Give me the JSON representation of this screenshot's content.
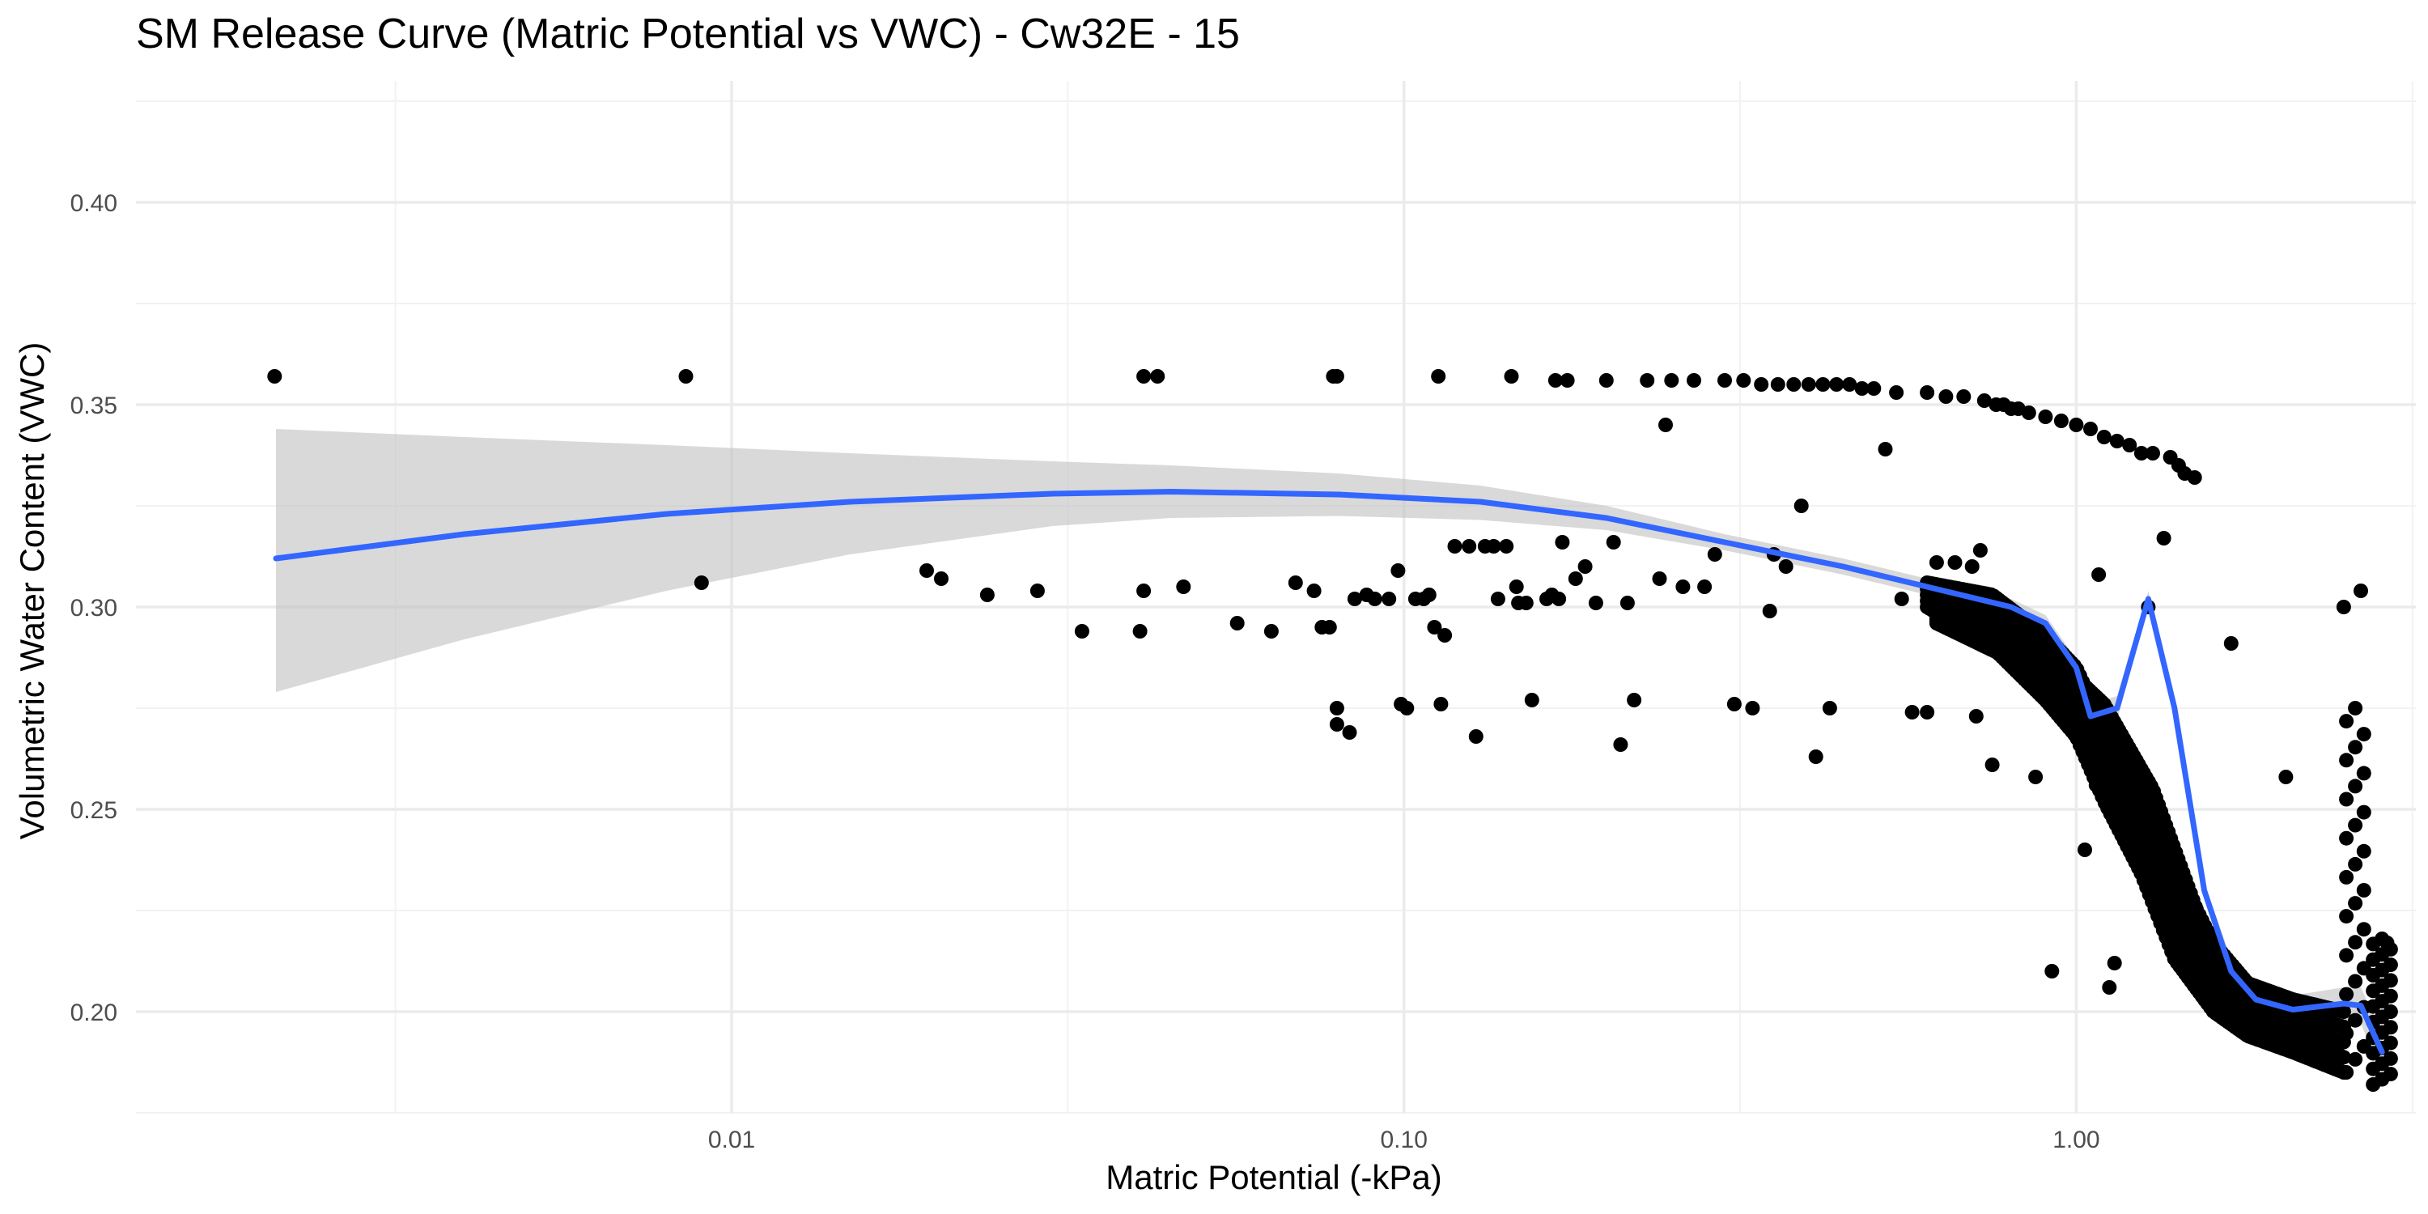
{
  "chart_data": {
    "type": "scatter",
    "title": "SM Release Curve (Matric Potential vs VWC) - Cw32E - 15",
    "xlabel": "Matric Potential (-kPa)",
    "ylabel": "Volumetric Water Content (VWC)",
    "x_scale": "log10",
    "xlim": [
      0.0013,
      3.2
    ],
    "ylim": [
      0.175,
      0.43
    ],
    "x_ticks": [
      0.01,
      0.1,
      1.0
    ],
    "x_tick_labels": [
      "0.01",
      "0.10",
      "1.00"
    ],
    "y_ticks": [
      0.2,
      0.25,
      0.3,
      0.35,
      0.4
    ],
    "y_tick_labels": [
      "0.20",
      "0.25",
      "0.30",
      "0.35",
      "0.40"
    ],
    "grid": true,
    "colors": {
      "points": "#000000",
      "fit_line": "#3366ff",
      "ribbon": "#bfbfbf",
      "grid_major": "#ebebeb",
      "grid_minor": "#f2f2f2"
    },
    "series": [
      {
        "kind": "points",
        "points": [
          [
            0.00209,
            0.357
          ],
          [
            0.00855,
            0.357
          ],
          [
            0.00902,
            0.306
          ],
          [
            0.0195,
            0.309
          ],
          [
            0.0205,
            0.307
          ],
          [
            0.024,
            0.303
          ],
          [
            0.0285,
            0.304
          ],
          [
            0.0332,
            0.294
          ],
          [
            0.0405,
            0.294
          ],
          [
            0.041,
            0.304
          ],
          [
            0.041,
            0.357
          ],
          [
            0.043,
            0.357
          ],
          [
            0.047,
            0.305
          ],
          [
            0.0565,
            0.296
          ],
          [
            0.0635,
            0.294
          ],
          [
            0.069,
            0.306
          ],
          [
            0.0735,
            0.304
          ],
          [
            0.0755,
            0.295
          ],
          [
            0.0775,
            0.295
          ],
          [
            0.0785,
            0.357
          ],
          [
            0.0795,
            0.357
          ],
          [
            0.0795,
            0.275
          ],
          [
            0.0795,
            0.271
          ],
          [
            0.083,
            0.269
          ],
          [
            0.0845,
            0.302
          ],
          [
            0.088,
            0.303
          ],
          [
            0.0905,
            0.302
          ],
          [
            0.095,
            0.302
          ],
          [
            0.098,
            0.309
          ],
          [
            0.099,
            0.276
          ],
          [
            0.101,
            0.275
          ],
          [
            0.104,
            0.302
          ],
          [
            0.107,
            0.302
          ],
          [
            0.109,
            0.303
          ],
          [
            0.111,
            0.295
          ],
          [
            0.1125,
            0.357
          ],
          [
            0.1135,
            0.276
          ],
          [
            0.115,
            0.293
          ],
          [
            0.119,
            0.315
          ],
          [
            0.125,
            0.315
          ],
          [
            0.128,
            0.268
          ],
          [
            0.132,
            0.315
          ],
          [
            0.136,
            0.315
          ],
          [
            0.138,
            0.302
          ],
          [
            0.142,
            0.315
          ],
          [
            0.1445,
            0.357
          ],
          [
            0.147,
            0.305
          ],
          [
            0.148,
            0.301
          ],
          [
            0.152,
            0.301
          ],
          [
            0.155,
            0.277
          ],
          [
            0.163,
            0.302
          ],
          [
            0.166,
            0.303
          ],
          [
            0.168,
            0.356
          ],
          [
            0.17,
            0.302
          ],
          [
            0.172,
            0.316
          ],
          [
            0.175,
            0.356
          ],
          [
            0.18,
            0.307
          ],
          [
            0.186,
            0.31
          ],
          [
            0.193,
            0.301
          ],
          [
            0.2,
            0.356
          ],
          [
            0.205,
            0.316
          ],
          [
            0.21,
            0.266
          ],
          [
            0.215,
            0.301
          ],
          [
            0.22,
            0.277
          ],
          [
            0.23,
            0.356
          ],
          [
            0.24,
            0.307
          ],
          [
            0.245,
            0.345
          ],
          [
            0.25,
            0.356
          ],
          [
            0.26,
            0.305
          ],
          [
            0.27,
            0.356
          ],
          [
            0.28,
            0.305
          ],
          [
            0.29,
            0.313
          ],
          [
            0.3,
            0.356
          ],
          [
            0.31,
            0.276
          ],
          [
            0.32,
            0.356
          ],
          [
            0.33,
            0.275
          ],
          [
            0.34,
            0.355
          ],
          [
            0.35,
            0.299
          ],
          [
            0.355,
            0.313
          ],
          [
            0.36,
            0.355
          ],
          [
            0.37,
            0.31
          ],
          [
            0.38,
            0.355
          ],
          [
            0.39,
            0.325
          ],
          [
            0.4,
            0.355
          ],
          [
            0.41,
            0.263
          ],
          [
            0.42,
            0.355
          ],
          [
            0.43,
            0.275
          ],
          [
            0.44,
            0.355
          ],
          [
            0.46,
            0.355
          ],
          [
            0.48,
            0.354
          ],
          [
            0.5,
            0.354
          ],
          [
            0.52,
            0.339
          ],
          [
            0.54,
            0.353
          ],
          [
            0.55,
            0.302
          ],
          [
            0.57,
            0.274
          ],
          [
            0.6,
            0.353
          ],
          [
            0.6,
            0.274
          ],
          [
            0.62,
            0.311
          ],
          [
            0.64,
            0.352
          ],
          [
            0.66,
            0.311
          ],
          [
            0.68,
            0.352
          ],
          [
            0.7,
            0.31
          ],
          [
            0.71,
            0.273
          ],
          [
            0.72,
            0.314
          ],
          [
            0.73,
            0.351
          ],
          [
            0.75,
            0.261
          ],
          [
            0.76,
            0.35
          ],
          [
            0.78,
            0.35
          ],
          [
            0.8,
            0.349
          ],
          [
            0.82,
            0.349
          ],
          [
            0.85,
            0.348
          ],
          [
            0.87,
            0.258
          ],
          [
            0.9,
            0.347
          ],
          [
            0.92,
            0.21
          ],
          [
            0.95,
            0.346
          ],
          [
            1.0,
            0.345
          ],
          [
            1.03,
            0.24
          ],
          [
            1.05,
            0.344
          ],
          [
            1.07,
            0.256
          ],
          [
            1.08,
            0.308
          ],
          [
            1.1,
            0.342
          ],
          [
            1.12,
            0.206
          ],
          [
            1.14,
            0.212
          ],
          [
            1.15,
            0.341
          ],
          [
            1.2,
            0.34
          ],
          [
            1.25,
            0.338
          ],
          [
            1.28,
            0.3
          ],
          [
            1.3,
            0.338
          ],
          [
            1.35,
            0.317
          ],
          [
            1.38,
            0.337
          ],
          [
            1.42,
            0.335
          ],
          [
            1.45,
            0.333
          ],
          [
            1.5,
            0.332
          ],
          [
            1.7,
            0.291
          ],
          [
            2.05,
            0.258
          ],
          [
            2.5,
            0.3
          ],
          [
            2.65,
            0.304
          ],
          [
            2.9,
            0.217
          ]
        ],
        "trend_bands": [
          {
            "x": [
              0.6,
              0.75,
              0.9,
              1.0,
              1.1,
              1.25,
              1.4,
              1.6,
              1.8,
              2.1,
              2.5
            ],
            "y_top": [
              0.306,
              0.303,
              0.293,
              0.285,
              0.27,
              0.255,
              0.236,
              0.217,
              0.207,
              0.203,
              0.2
            ],
            "y_bottom": [
              0.3,
              0.29,
              0.277,
              0.268,
              0.252,
              0.234,
              0.213,
              0.2,
              0.194,
              0.19,
              0.185
            ]
          },
          {
            "x": [
              0.62,
              0.78,
              0.95,
              1.1,
              1.3,
              1.55,
              1.8,
              2.2
            ],
            "y_top": [
              0.298,
              0.293,
              0.286,
              0.276,
              0.255,
              0.22,
              0.205,
              0.198
            ],
            "y_bottom": [
              0.296,
              0.288,
              0.279,
              0.266,
              0.24,
              0.208,
              0.199,
              0.195
            ]
          }
        ],
        "vertical_clusters": [
          {
            "x": 2.6,
            "y_min": 0.185,
            "y_max": 0.275
          },
          {
            "x": 2.85,
            "y_min": 0.182,
            "y_max": 0.218
          }
        ]
      },
      {
        "kind": "smooth",
        "line": [
          [
            0.0021,
            0.312
          ],
          [
            0.004,
            0.318
          ],
          [
            0.008,
            0.323
          ],
          [
            0.015,
            0.326
          ],
          [
            0.03,
            0.328
          ],
          [
            0.045,
            0.3285
          ],
          [
            0.08,
            0.3278
          ],
          [
            0.13,
            0.326
          ],
          [
            0.2,
            0.322
          ],
          [
            0.3,
            0.316
          ],
          [
            0.45,
            0.31
          ],
          [
            0.6,
            0.305
          ],
          [
            0.8,
            0.3
          ],
          [
            0.9,
            0.296
          ],
          [
            1.0,
            0.285
          ],
          [
            1.05,
            0.273
          ],
          [
            1.15,
            0.275
          ],
          [
            1.28,
            0.302
          ],
          [
            1.4,
            0.275
          ],
          [
            1.55,
            0.23
          ],
          [
            1.7,
            0.21
          ],
          [
            1.85,
            0.203
          ],
          [
            2.1,
            0.2005
          ],
          [
            2.5,
            0.202
          ],
          [
            2.65,
            0.2015
          ],
          [
            2.85,
            0.19
          ]
        ],
        "band_upper": [
          [
            0.0021,
            0.344
          ],
          [
            0.004,
            0.342
          ],
          [
            0.008,
            0.34
          ],
          [
            0.015,
            0.338
          ],
          [
            0.03,
            0.336
          ],
          [
            0.045,
            0.335
          ],
          [
            0.08,
            0.333
          ],
          [
            0.13,
            0.33
          ],
          [
            0.2,
            0.325
          ],
          [
            0.3,
            0.318
          ],
          [
            0.45,
            0.312
          ],
          [
            0.6,
            0.307
          ],
          [
            0.8,
            0.302
          ],
          [
            0.9,
            0.298
          ],
          [
            1.0,
            0.287
          ],
          [
            1.05,
            0.276
          ],
          [
            1.15,
            0.278
          ],
          [
            1.28,
            0.304
          ],
          [
            1.4,
            0.277
          ],
          [
            1.55,
            0.232
          ],
          [
            1.7,
            0.213
          ],
          [
            1.85,
            0.206
          ],
          [
            2.1,
            0.204
          ],
          [
            2.5,
            0.206
          ],
          [
            2.65,
            0.206
          ],
          [
            2.85,
            0.195
          ]
        ],
        "band_lower": [
          [
            0.0021,
            0.279
          ],
          [
            0.004,
            0.292
          ],
          [
            0.008,
            0.304
          ],
          [
            0.015,
            0.313
          ],
          [
            0.03,
            0.32
          ],
          [
            0.045,
            0.322
          ],
          [
            0.08,
            0.3225
          ],
          [
            0.13,
            0.3215
          ],
          [
            0.2,
            0.319
          ],
          [
            0.3,
            0.314
          ],
          [
            0.45,
            0.308
          ],
          [
            0.6,
            0.303
          ],
          [
            0.8,
            0.298
          ],
          [
            0.9,
            0.294
          ],
          [
            1.0,
            0.283
          ],
          [
            1.05,
            0.27
          ],
          [
            1.15,
            0.272
          ],
          [
            1.28,
            0.3
          ],
          [
            1.4,
            0.273
          ],
          [
            1.55,
            0.228
          ],
          [
            1.7,
            0.207
          ],
          [
            1.85,
            0.2
          ],
          [
            2.1,
            0.197
          ],
          [
            2.5,
            0.198
          ],
          [
            2.65,
            0.197
          ],
          [
            2.85,
            0.185
          ]
        ]
      }
    ]
  }
}
